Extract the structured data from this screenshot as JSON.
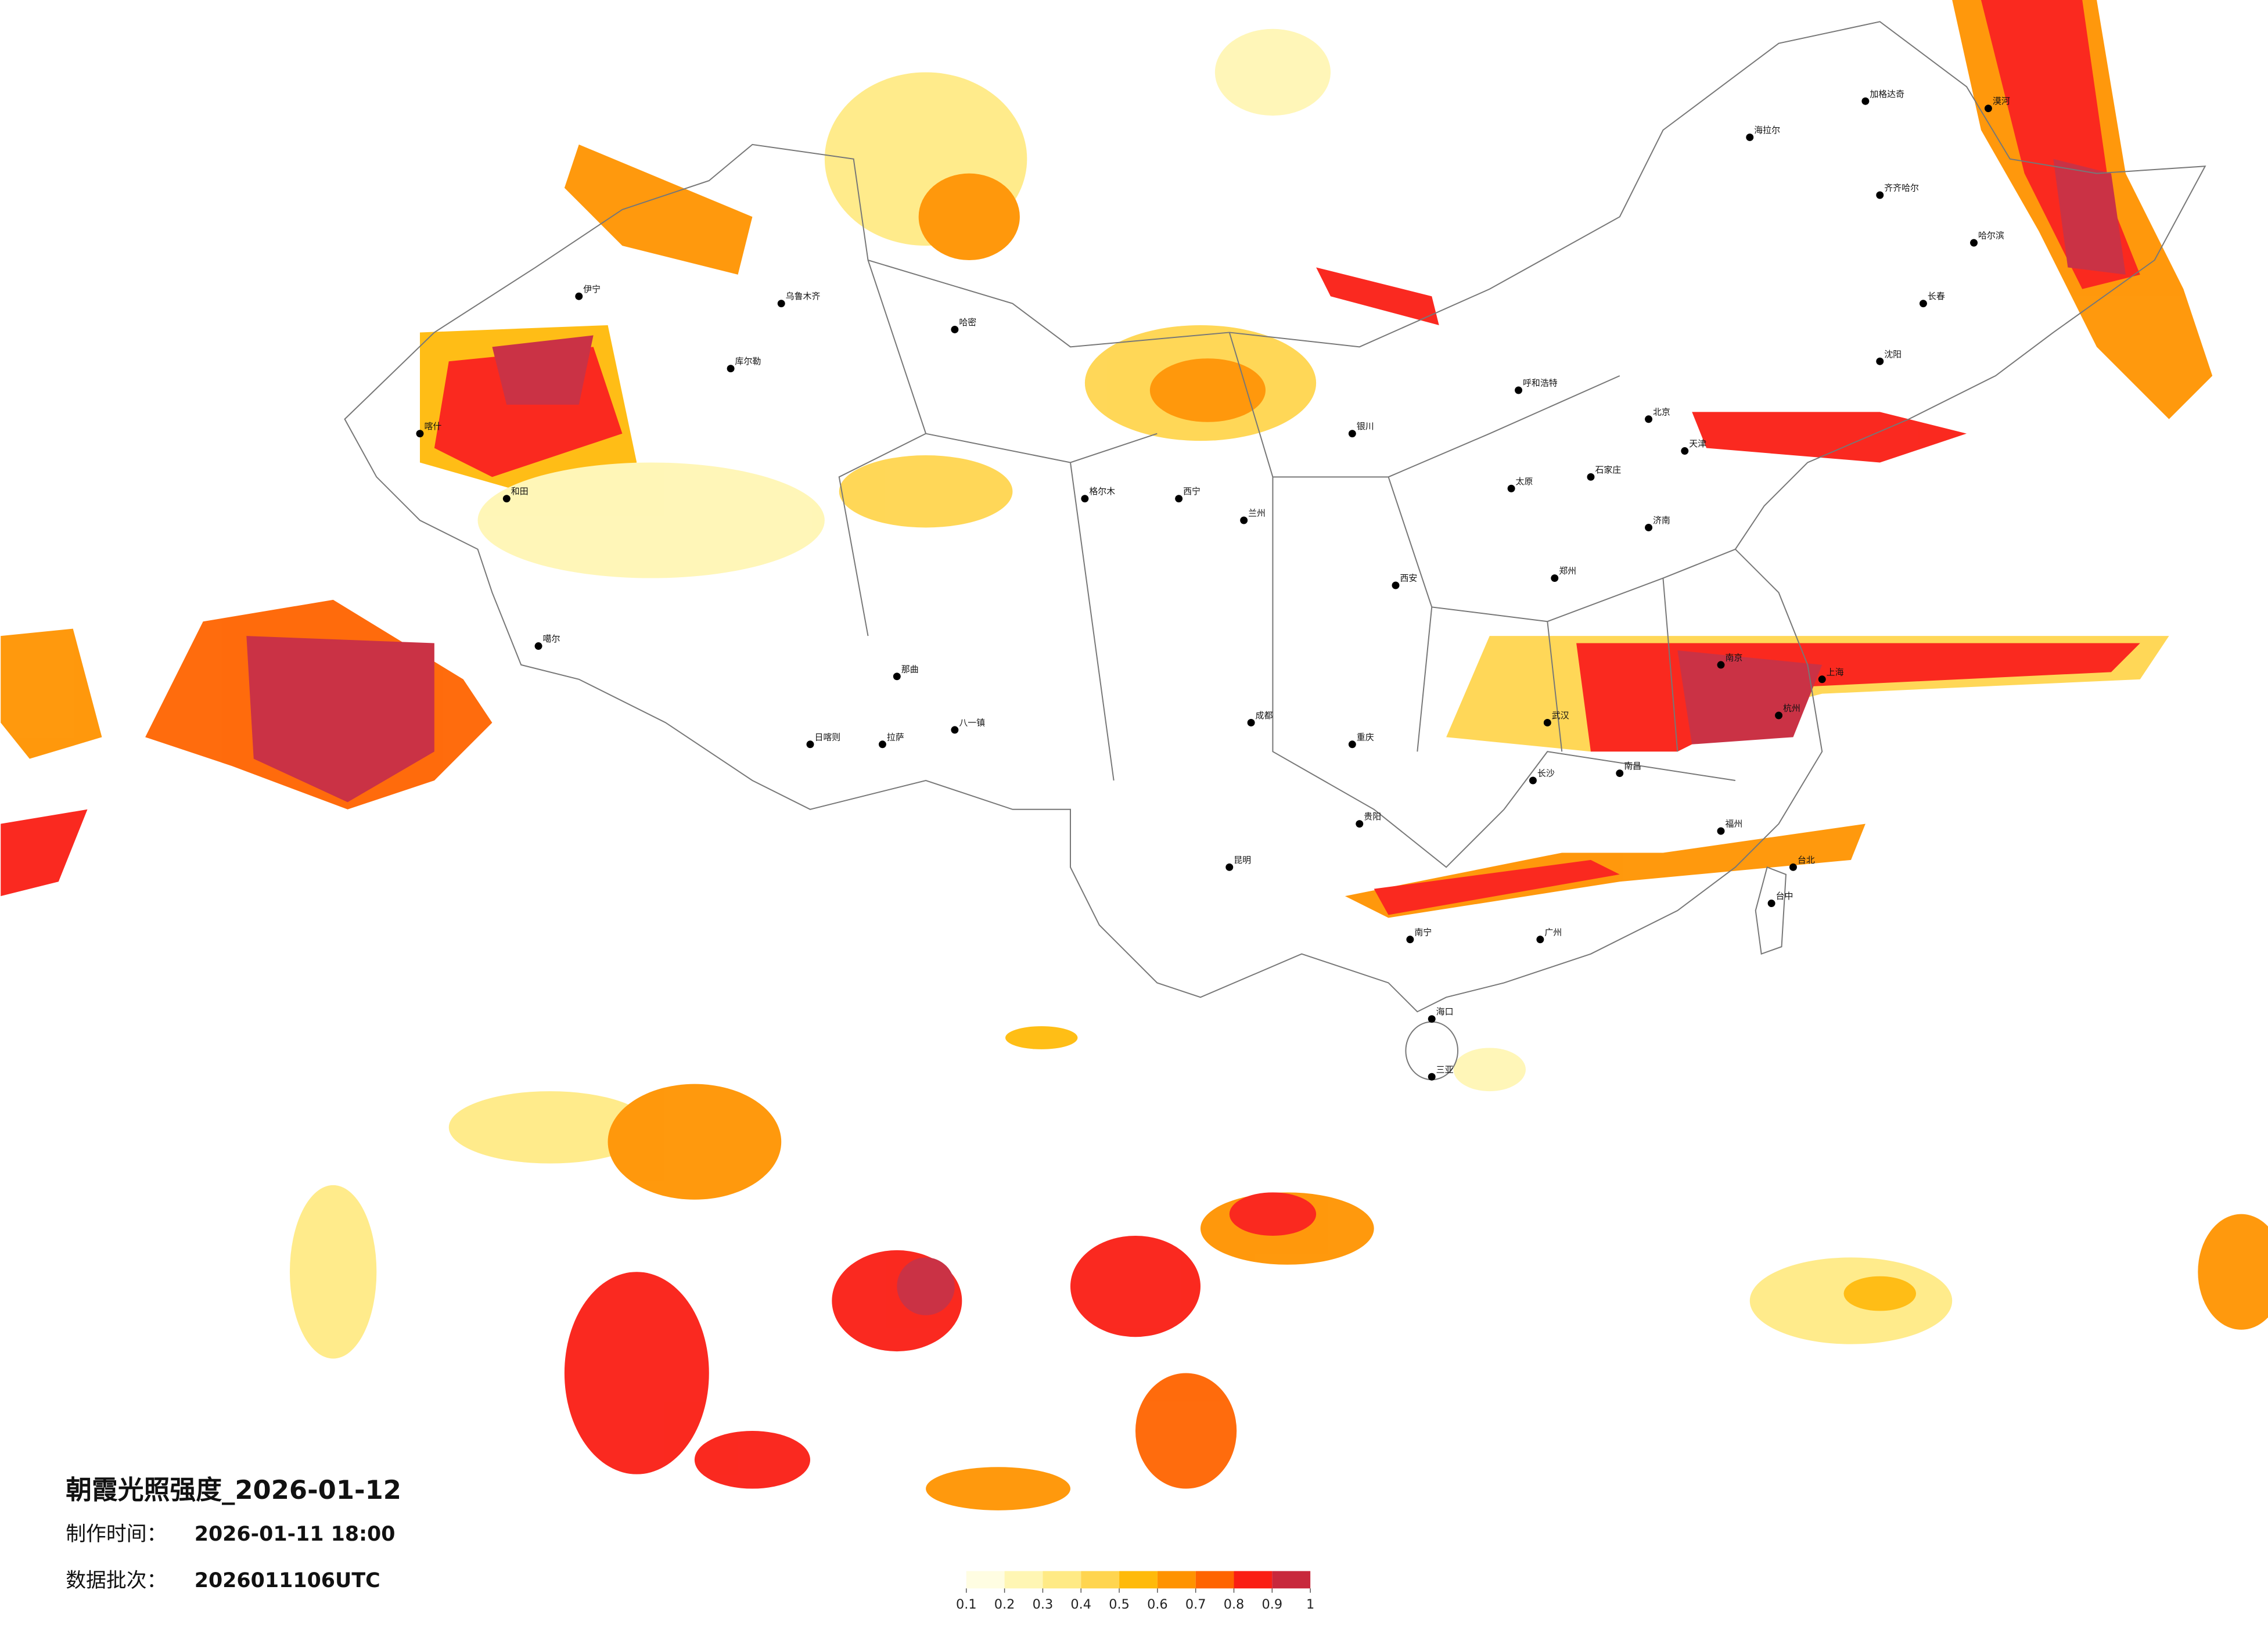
{
  "title": "朝霞光照强度_2026-01-12",
  "made_label": "制作时间：",
  "made_time": "2026-01-11 18:00",
  "batch_label": "数据批次：",
  "batch": "2026011106UTC",
  "legend": {
    "ticks": [
      0.1,
      0.2,
      0.3,
      0.4,
      0.5,
      0.6,
      0.7,
      0.8,
      0.9,
      1
    ],
    "colors": [
      "#fffde2",
      "#fff6b4",
      "#ffea85",
      "#ffd54f",
      "#ffba0a",
      "#ff9300",
      "#ff6400",
      "#fa1e14",
      "#c8283c"
    ]
  },
  "cities": [
    "漠河",
    "加格达奇",
    "海拉尔",
    "齐齐哈尔",
    "哈尔滨",
    "长春",
    "沈阳",
    "北京",
    "天津",
    "石家庄",
    "太原",
    "呼和浩特",
    "银川",
    "兰州",
    "西宁",
    "格尔木",
    "拉萨",
    "日喀则",
    "成都",
    "重庆",
    "贵阳",
    "昆明",
    "南宁",
    "广州",
    "福州",
    "台北",
    "台中",
    "杭州",
    "上海",
    "南京",
    "武汉",
    "长沙",
    "南昌",
    "郑州",
    "济南",
    "西安",
    "海口",
    "三亚",
    "喀什",
    "和田",
    "乌鲁木齐",
    "哈密",
    "库尔勒",
    "伊宁",
    "噶尔",
    "那曲",
    "八一镇"
  ]
}
